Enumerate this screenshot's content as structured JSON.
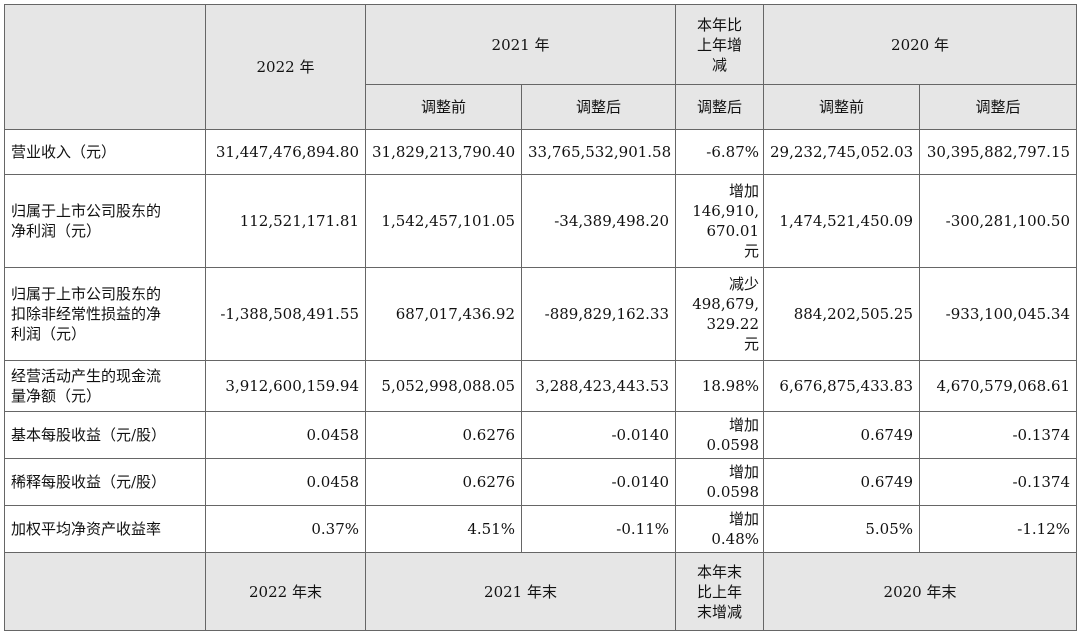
{
  "header": {
    "y2022": "2022 年",
    "y2021": "2021 年",
    "change": "本年比\n上年增\n减",
    "y2020": "2020 年",
    "before": "调整前",
    "after": "调整后",
    "change_after": "调整后"
  },
  "rows": [
    {
      "label": "营业收入（元）",
      "v2022": "31,447,476,894.80",
      "b2021": "31,829,213,790.40",
      "a2021": "33,765,532,901.58",
      "chg": "-6.87%",
      "b2020": "29,232,745,052.03",
      "a2020": "30,395,882,797.15"
    },
    {
      "label": "归属于上市公司股东的\n净利润（元）",
      "v2022": "112,521,171.81",
      "b2021": "1,542,457,101.05",
      "a2021": "-34,389,498.20",
      "chg": "增加\n146,910,\n670.01\n元",
      "b2020": "1,474,521,450.09",
      "a2020": "-300,281,100.50"
    },
    {
      "label": "归属于上市公司股东的\n扣除非经常性损益的净\n利润（元）",
      "v2022": "-1,388,508,491.55",
      "b2021": "687,017,436.92",
      "a2021": "-889,829,162.33",
      "chg": "减少\n498,679,\n329.22\n元",
      "b2020": "884,202,505.25",
      "a2020": "-933,100,045.34"
    },
    {
      "label": "经营活动产生的现金流\n量净额（元）",
      "v2022": "3,912,600,159.94",
      "b2021": "5,052,998,088.05",
      "a2021": "3,288,423,443.53",
      "chg": "18.98%",
      "b2020": "6,676,875,433.83",
      "a2020": "4,670,579,068.61"
    },
    {
      "label": "基本每股收益（元/股）",
      "v2022": "0.0458",
      "b2021": "0.6276",
      "a2021": "-0.0140",
      "chg": "增加\n0.0598",
      "b2020": "0.6749",
      "a2020": "-0.1374"
    },
    {
      "label": "稀释每股收益（元/股）",
      "v2022": "0.0458",
      "b2021": "0.6276",
      "a2021": "-0.0140",
      "chg": "增加\n0.0598",
      "b2020": "0.6749",
      "a2020": "-0.1374"
    },
    {
      "label": "加权平均净资产收益率",
      "v2022": "0.37%",
      "b2021": "4.51%",
      "a2021": "-0.11%",
      "chg": "增加\n0.48%",
      "b2020": "5.05%",
      "a2020": "-1.12%"
    }
  ],
  "footer": {
    "y2022": "2022 年末",
    "y2021": "2021 年末",
    "change": "本年末\n比上年\n末增减",
    "y2020": "2020 年末"
  }
}
